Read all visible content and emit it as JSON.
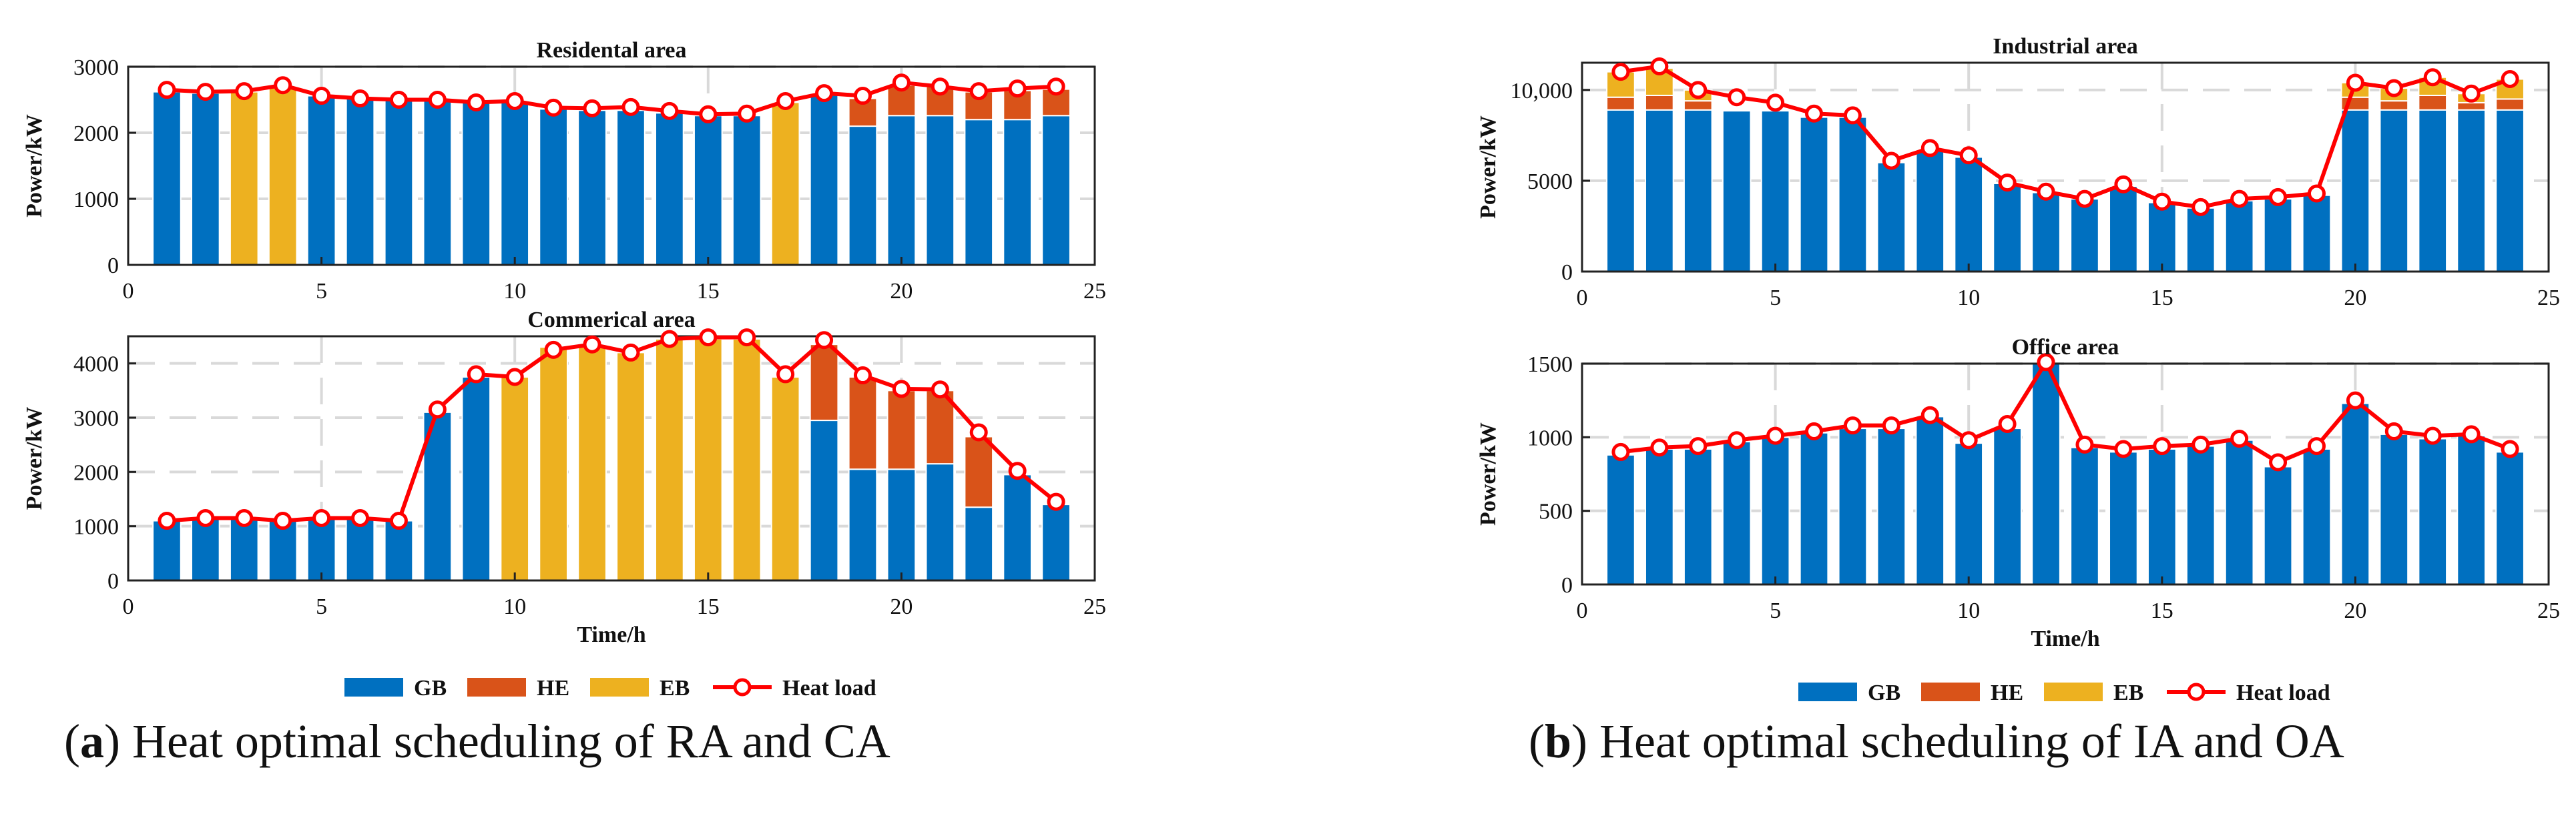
{
  "colors": {
    "GB": "#0070C0",
    "HE": "#D95319",
    "EB": "#EDB120",
    "load": "#FF0000"
  },
  "legend": {
    "gb": "GB",
    "he": "HE",
    "eb": "EB",
    "load": "Heat load"
  },
  "captions": {
    "a": {
      "label": "a",
      "text": ") Heat optimal scheduling of RA and CA"
    },
    "b": {
      "label": "b",
      "text": ") Heat optimal scheduling of IA and OA"
    }
  },
  "chart_data": [
    {
      "id": "residential",
      "type": "bar",
      "stacked": true,
      "title": "Residental area",
      "xlabel": "",
      "ylabel": "Power/kW",
      "xlim": [
        0,
        25
      ],
      "ylim": [
        0,
        3000
      ],
      "xticks": [
        0,
        5,
        10,
        15,
        20,
        25
      ],
      "yticks": [
        0,
        1000,
        2000,
        3000
      ],
      "ytick_labels": [
        "0",
        "1000",
        "2000",
        "3000"
      ],
      "grid": true,
      "x": [
        1,
        2,
        3,
        4,
        5,
        6,
        7,
        8,
        9,
        10,
        11,
        12,
        13,
        14,
        15,
        16,
        17,
        18,
        19,
        20,
        21,
        22,
        23,
        24
      ],
      "series": [
        {
          "name": "GB",
          "values": [
            2620,
            2600,
            0,
            0,
            2560,
            2520,
            2500,
            2480,
            2460,
            2460,
            2360,
            2340,
            2340,
            2300,
            2260,
            2260,
            0,
            2600,
            2100,
            2260,
            2260,
            2200,
            2200,
            2260
          ]
        },
        {
          "name": "HE",
          "values": [
            0,
            0,
            0,
            0,
            0,
            0,
            0,
            0,
            0,
            0,
            0,
            0,
            0,
            0,
            0,
            0,
            0,
            0,
            420,
            460,
            440,
            420,
            440,
            400
          ]
        },
        {
          "name": "EB",
          "values": [
            0,
            0,
            2620,
            2700,
            0,
            0,
            0,
            0,
            0,
            0,
            0,
            0,
            0,
            0,
            0,
            0,
            2460,
            0,
            0,
            0,
            0,
            0,
            0,
            0
          ]
        }
      ],
      "heat_load": [
        2650,
        2620,
        2630,
        2720,
        2560,
        2520,
        2500,
        2500,
        2460,
        2480,
        2380,
        2370,
        2390,
        2330,
        2280,
        2290,
        2480,
        2600,
        2560,
        2760,
        2700,
        2630,
        2670,
        2700
      ]
    },
    {
      "id": "commercial",
      "type": "bar",
      "stacked": true,
      "title": "Commerical area",
      "xlabel": "Time/h",
      "ylabel": "Power/kW",
      "xlim": [
        0,
        25
      ],
      "ylim": [
        0,
        4500
      ],
      "xticks": [
        0,
        5,
        10,
        15,
        20,
        25
      ],
      "yticks": [
        0,
        1000,
        2000,
        3000,
        4000
      ],
      "ytick_labels": [
        "0",
        "1000",
        "2000",
        "3000",
        "4000"
      ],
      "grid": true,
      "x": [
        1,
        2,
        3,
        4,
        5,
        6,
        7,
        8,
        9,
        10,
        11,
        12,
        13,
        14,
        15,
        16,
        17,
        18,
        19,
        20,
        21,
        22,
        23,
        24
      ],
      "series": [
        {
          "name": "GB",
          "values": [
            1100,
            1150,
            1150,
            1100,
            1150,
            1150,
            1100,
            3100,
            3750,
            0,
            0,
            0,
            0,
            0,
            0,
            0,
            0,
            2950,
            2050,
            2050,
            2150,
            1350,
            1950,
            1400
          ]
        },
        {
          "name": "HE",
          "values": [
            0,
            0,
            0,
            0,
            0,
            0,
            0,
            0,
            0,
            0,
            0,
            0,
            0,
            0,
            0,
            0,
            0,
            1400,
            1700,
            1450,
            1350,
            1300,
            0,
            0
          ]
        },
        {
          "name": "EB",
          "values": [
            0,
            0,
            0,
            0,
            0,
            0,
            0,
            0,
            0,
            3750,
            4300,
            4350,
            4200,
            4450,
            4450,
            4450,
            3750,
            0,
            0,
            0,
            0,
            0,
            0,
            0
          ]
        }
      ],
      "heat_load": [
        1100,
        1150,
        1150,
        1100,
        1150,
        1150,
        1100,
        3150,
        3800,
        3750,
        4250,
        4350,
        4200,
        4450,
        4480,
        4480,
        3800,
        4430,
        3780,
        3530,
        3520,
        2730,
        2020,
        1450
      ]
    },
    {
      "id": "industrial",
      "type": "bar",
      "stacked": true,
      "title": "Industrial area",
      "xlabel": "",
      "ylabel": "Power/kW",
      "xlim": [
        0,
        25
      ],
      "ylim": [
        0,
        11500
      ],
      "xticks": [
        0,
        5,
        10,
        15,
        20,
        25
      ],
      "yticks": [
        0,
        5000,
        10000
      ],
      "ytick_labels": [
        "0",
        "5000",
        "10,000"
      ],
      "grid": true,
      "x": [
        1,
        2,
        3,
        4,
        5,
        6,
        7,
        8,
        9,
        10,
        11,
        12,
        13,
        14,
        15,
        16,
        17,
        18,
        19,
        20,
        21,
        22,
        23,
        24
      ],
      "series": [
        {
          "name": "GB",
          "values": [
            8900,
            8900,
            8900,
            8850,
            8850,
            8500,
            8500,
            6000,
            6700,
            6300,
            4850,
            4350,
            4000,
            4700,
            3800,
            3500,
            3900,
            4000,
            4200,
            8900,
            8900,
            8900,
            8900,
            8900
          ]
        },
        {
          "name": "HE",
          "values": [
            700,
            800,
            500,
            0,
            0,
            0,
            0,
            0,
            0,
            0,
            0,
            0,
            0,
            0,
            0,
            0,
            0,
            0,
            0,
            700,
            500,
            800,
            400,
            600
          ]
        },
        {
          "name": "EB",
          "values": [
            1400,
            1500,
            600,
            0,
            0,
            0,
            0,
            0,
            0,
            0,
            0,
            0,
            0,
            0,
            0,
            0,
            0,
            0,
            0,
            800,
            700,
            1000,
            500,
            1100
          ]
        }
      ],
      "heat_load": [
        11000,
        11300,
        10000,
        9600,
        9300,
        8700,
        8600,
        6100,
        6800,
        6400,
        4900,
        4400,
        4000,
        4800,
        3850,
        3550,
        4000,
        4100,
        4300,
        10400,
        10100,
        10700,
        9800,
        10600
      ]
    },
    {
      "id": "office",
      "type": "bar",
      "stacked": true,
      "title": "Office area",
      "xlabel": "Time/h",
      "ylabel": "Power/kW",
      "xlim": [
        0,
        25
      ],
      "ylim": [
        0,
        1500
      ],
      "xticks": [
        0,
        5,
        10,
        15,
        20,
        25
      ],
      "yticks": [
        0,
        500,
        1000,
        1500
      ],
      "ytick_labels": [
        "0",
        "500",
        "1000",
        "1500"
      ],
      "grid": true,
      "x": [
        1,
        2,
        3,
        4,
        5,
        6,
        7,
        8,
        9,
        10,
        11,
        12,
        13,
        14,
        15,
        16,
        17,
        18,
        19,
        20,
        21,
        22,
        23,
        24
      ],
      "series": [
        {
          "name": "GB",
          "values": [
            880,
            920,
            920,
            970,
            1000,
            1030,
            1060,
            1060,
            1140,
            960,
            1060,
            1500,
            930,
            900,
            920,
            940,
            980,
            800,
            920,
            1230,
            1020,
            990,
            1010,
            900
          ]
        },
        {
          "name": "HE",
          "values": [
            0,
            0,
            0,
            0,
            0,
            0,
            0,
            0,
            0,
            0,
            0,
            0,
            0,
            0,
            0,
            0,
            0,
            0,
            0,
            0,
            0,
            0,
            0,
            0
          ]
        },
        {
          "name": "EB",
          "values": [
            0,
            0,
            0,
            0,
            0,
            0,
            0,
            0,
            0,
            0,
            0,
            0,
            0,
            0,
            0,
            0,
            0,
            0,
            0,
            0,
            0,
            0,
            0,
            0
          ]
        }
      ],
      "heat_load": [
        900,
        930,
        940,
        980,
        1010,
        1040,
        1080,
        1080,
        1150,
        980,
        1090,
        1510,
        950,
        920,
        940,
        950,
        990,
        830,
        940,
        1250,
        1040,
        1010,
        1020,
        920
      ]
    }
  ]
}
